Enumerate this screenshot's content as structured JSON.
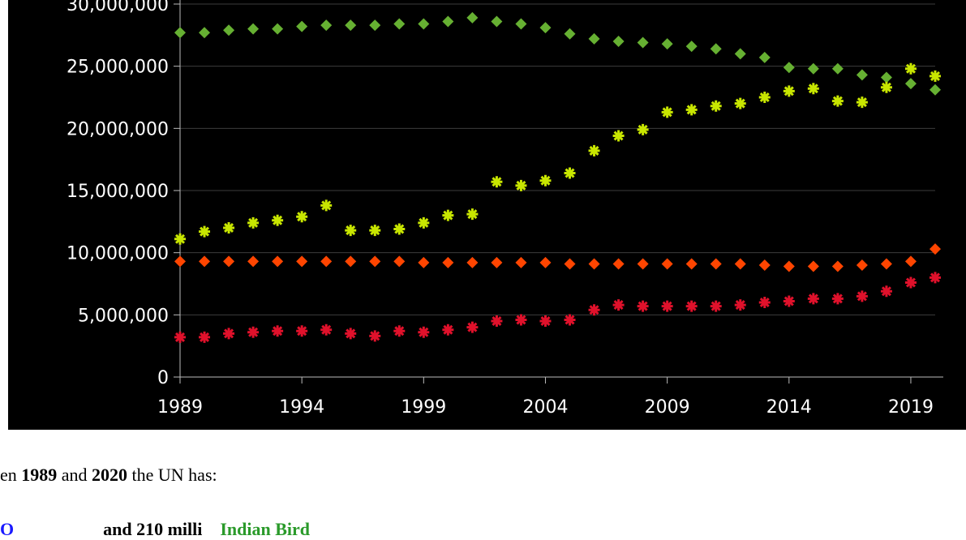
{
  "chart_data": {
    "type": "scatter",
    "y_ticks": [
      "0",
      "5,000,000",
      "10,000,000",
      "15,000,000",
      "20,000,000",
      "25,000,000",
      "30,000,000"
    ],
    "x_ticks": [
      "1989",
      "1994",
      "1999",
      "2004",
      "2009",
      "2014",
      "2019"
    ],
    "xlim": [
      1989,
      2020
    ],
    "ylim": [
      0,
      30000000
    ],
    "grid": true,
    "x": [
      1989,
      1990,
      1991,
      1992,
      1993,
      1994,
      1995,
      1996,
      1997,
      1998,
      1999,
      2000,
      2001,
      2002,
      2003,
      2004,
      2005,
      2006,
      2007,
      2008,
      2009,
      2010,
      2011,
      2012,
      2013,
      2014,
      2015,
      2016,
      2017,
      2018,
      2019,
      2020
    ],
    "series": [
      {
        "marker": "diamond",
        "color": "#66b032",
        "values": [
          27700000,
          27700000,
          27900000,
          28000000,
          28000000,
          28200000,
          28300000,
          28300000,
          28300000,
          28400000,
          28400000,
          28600000,
          28900000,
          28600000,
          28400000,
          28100000,
          27600000,
          27200000,
          27000000,
          26900000,
          26800000,
          26600000,
          26400000,
          26000000,
          25700000,
          24900000,
          24800000,
          24800000,
          24300000,
          24100000,
          23600000,
          23100000
        ]
      },
      {
        "marker": "asterisk",
        "color": "#c8e600",
        "values": [
          11100000,
          11700000,
          12000000,
          12400000,
          12600000,
          12900000,
          13800000,
          11800000,
          11800000,
          11900000,
          12400000,
          13000000,
          13100000,
          15700000,
          15400000,
          15800000,
          16400000,
          18200000,
          19400000,
          19900000,
          21300000,
          21500000,
          21800000,
          22000000,
          22500000,
          23000000,
          23200000,
          22200000,
          22100000,
          23300000,
          24800000,
          24200000
        ]
      },
      {
        "marker": "diamond",
        "color": "#ff4500",
        "values": [
          9300000,
          9300000,
          9300000,
          9300000,
          9300000,
          9300000,
          9300000,
          9300000,
          9300000,
          9300000,
          9200000,
          9200000,
          9200000,
          9200000,
          9200000,
          9200000,
          9100000,
          9100000,
          9100000,
          9100000,
          9100000,
          9100000,
          9100000,
          9100000,
          9000000,
          8900000,
          8900000,
          8900000,
          9000000,
          9100000,
          9300000,
          10300000
        ]
      },
      {
        "marker": "asterisk",
        "color": "#e0112b",
        "values": [
          3200000,
          3200000,
          3500000,
          3600000,
          3700000,
          3700000,
          3800000,
          3500000,
          3300000,
          3700000,
          3600000,
          3800000,
          4000000,
          4500000,
          4600000,
          4500000,
          4600000,
          5400000,
          5800000,
          5700000,
          5700000,
          5700000,
          5700000,
          5800000,
          6000000,
          6100000,
          6300000,
          6300000,
          6500000,
          6900000,
          7600000,
          8000000
        ]
      }
    ]
  },
  "caption": {
    "line1_prefix": "en ",
    "year_start": "1989",
    "and_text": " and ",
    "year_end": "2020",
    "line1_suffix": " the UN has:",
    "line2_blue": "O",
    "line2_mid": "and 210 milli",
    "line2_green": "Indian Bird"
  }
}
